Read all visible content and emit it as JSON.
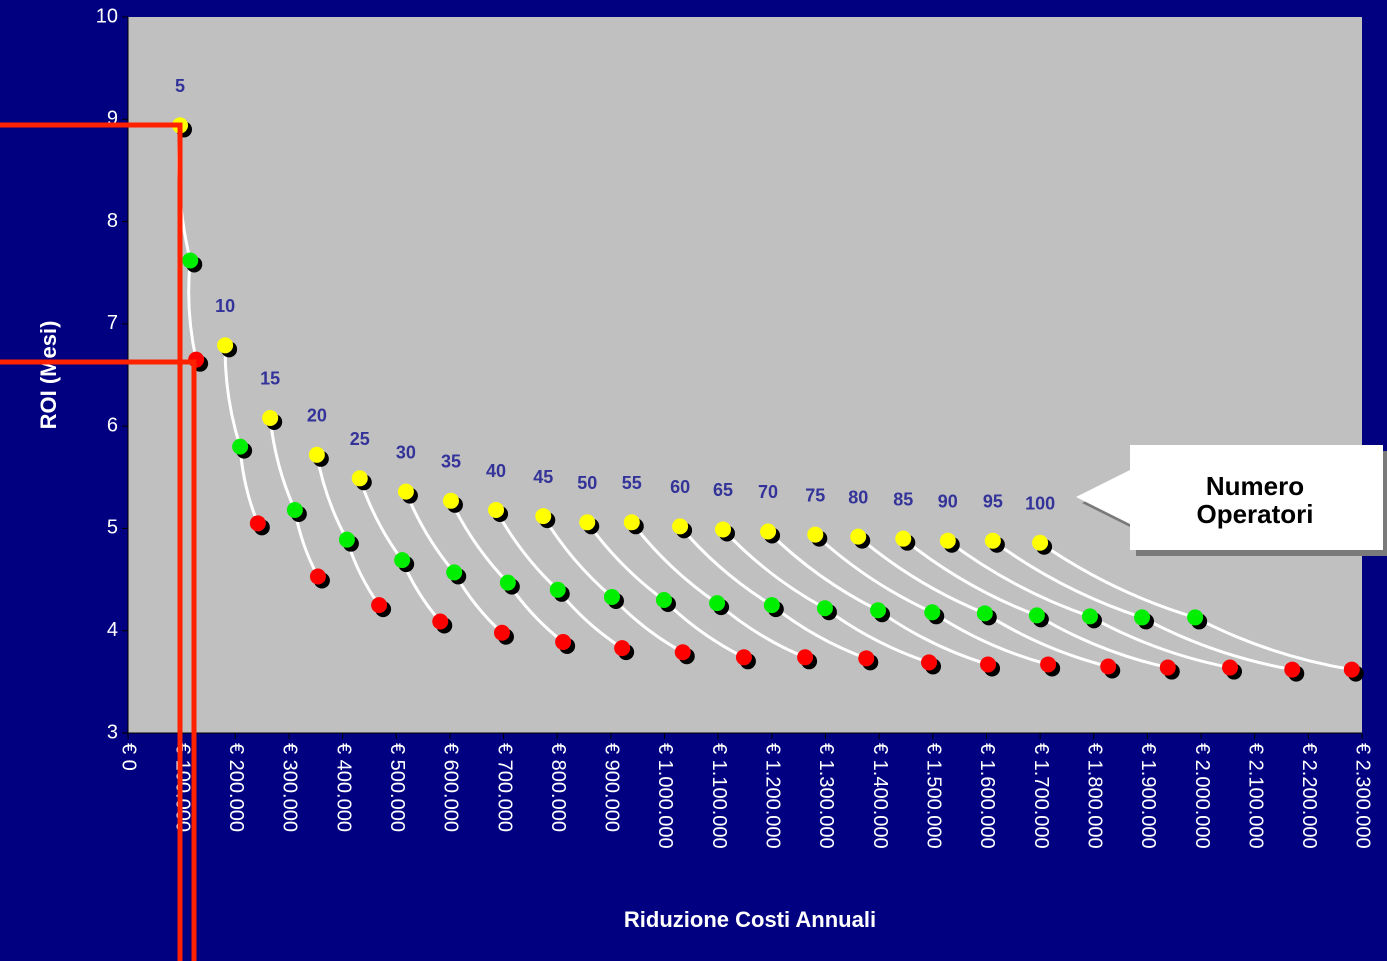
{
  "chart_data": {
    "type": "scatter",
    "x_label": "Riduzione Costi Annuali",
    "y_label": "ROI (Mesi)",
    "callout": "Numero Operatori",
    "xlim": [
      0,
      2300000
    ],
    "ylim": [
      3,
      10
    ],
    "yticks": [
      3,
      4,
      5,
      6,
      7,
      8,
      9,
      10
    ],
    "xticks": [
      {
        "value": 0,
        "label": "€ 0"
      },
      {
        "value": 100000,
        "label": "€ 100.000"
      },
      {
        "value": 200000,
        "label": "€ 200.000"
      },
      {
        "value": 300000,
        "label": "€ 300.000"
      },
      {
        "value": 400000,
        "label": "€ 400.000"
      },
      {
        "value": 500000,
        "label": "€ 500.000"
      },
      {
        "value": 600000,
        "label": "€ 600.000"
      },
      {
        "value": 700000,
        "label": "€ 700.000"
      },
      {
        "value": 800000,
        "label": "€ 800.000"
      },
      {
        "value": 900000,
        "label": "€ 900.000"
      },
      {
        "value": 1000000,
        "label": "€ 1.000.000"
      },
      {
        "value": 1100000,
        "label": "€ 1.100.000"
      },
      {
        "value": 1200000,
        "label": "€ 1.200.000"
      },
      {
        "value": 1300000,
        "label": "€ 1.300.000"
      },
      {
        "value": 1400000,
        "label": "€ 1.400.000"
      },
      {
        "value": 1500000,
        "label": "€ 1.500.000"
      },
      {
        "value": 1600000,
        "label": "€ 1.600.000"
      },
      {
        "value": 1700000,
        "label": "€ 1.700.000"
      },
      {
        "value": 1800000,
        "label": "€ 1.800.000"
      },
      {
        "value": 1900000,
        "label": "€ 1.900.000"
      },
      {
        "value": 2000000,
        "label": "€ 2.000.000"
      },
      {
        "value": 2100000,
        "label": "€ 2.100.000"
      },
      {
        "value": 2200000,
        "label": "€ 2.200.000"
      },
      {
        "value": 2300000,
        "label": "€ 2.300.000"
      }
    ],
    "line_color": "#ffffff",
    "label_color": "#333399",
    "point_colors": [
      "#ffff00",
      "#00ee00",
      "#ff0000"
    ],
    "series": [
      {
        "name": "5",
        "x": [
          97000,
          116000,
          127000
        ],
        "values": [
          8.94,
          7.62,
          6.65
        ]
      },
      {
        "name": "10",
        "x": [
          181000,
          209000,
          242000
        ],
        "values": [
          6.79,
          5.8,
          5.05
        ]
      },
      {
        "name": "15",
        "x": [
          265000,
          311000,
          354000
        ],
        "values": [
          6.08,
          5.18,
          4.53
        ]
      },
      {
        "name": "20",
        "x": [
          352000,
          408000,
          468000
        ],
        "values": [
          5.72,
          4.89,
          4.25
        ]
      },
      {
        "name": "25",
        "x": [
          432000,
          511000,
          582000
        ],
        "values": [
          5.49,
          4.69,
          4.09
        ]
      },
      {
        "name": "30",
        "x": [
          518000,
          608000,
          697000
        ],
        "values": [
          5.36,
          4.57,
          3.98
        ]
      },
      {
        "name": "35",
        "x": [
          602000,
          708000,
          811000
        ],
        "values": [
          5.27,
          4.47,
          3.89
        ]
      },
      {
        "name": "40",
        "x": [
          686000,
          801000,
          921000
        ],
        "values": [
          5.18,
          4.4,
          3.83
        ]
      },
      {
        "name": "45",
        "x": [
          774000,
          902000,
          1034000
        ],
        "values": [
          5.12,
          4.33,
          3.79
        ]
      },
      {
        "name": "50",
        "x": [
          856000,
          999000,
          1148000
        ],
        "values": [
          5.06,
          4.3,
          3.74
        ]
      },
      {
        "name": "55",
        "x": [
          939000,
          1098000,
          1262000
        ],
        "values": [
          5.06,
          4.27,
          3.74
        ]
      },
      {
        "name": "60",
        "x": [
          1029000,
          1200000,
          1376000
        ],
        "values": [
          5.02,
          4.25,
          3.73
        ]
      },
      {
        "name": "65",
        "x": [
          1109000,
          1299000,
          1493000
        ],
        "values": [
          4.99,
          4.22,
          3.69
        ]
      },
      {
        "name": "70",
        "x": [
          1193000,
          1398000,
          1603000
        ],
        "values": [
          4.97,
          4.2,
          3.67
        ]
      },
      {
        "name": "75",
        "x": [
          1281000,
          1499000,
          1715000
        ],
        "values": [
          4.94,
          4.18,
          3.67
        ]
      },
      {
        "name": "80",
        "x": [
          1361000,
          1597000,
          1827000
        ],
        "values": [
          4.92,
          4.17,
          3.65
        ]
      },
      {
        "name": "85",
        "x": [
          1445000,
          1694000,
          1938000
        ],
        "values": [
          4.9,
          4.15,
          3.64
        ]
      },
      {
        "name": "90",
        "x": [
          1528000,
          1793000,
          2054000
        ],
        "values": [
          4.88,
          4.14,
          3.64
        ]
      },
      {
        "name": "95",
        "x": [
          1612000,
          1890000,
          2170000
        ],
        "values": [
          4.88,
          4.13,
          3.62
        ]
      },
      {
        "name": "100",
        "x": [
          1700000,
          1989000,
          2281000
        ],
        "values": [
          4.86,
          4.13,
          3.62
        ]
      }
    ]
  }
}
